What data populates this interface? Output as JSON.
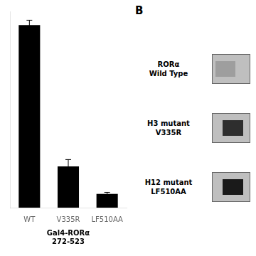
{
  "chart_data": {
    "type": "bar",
    "categories": [
      "WT",
      "V335R",
      "LF510AA"
    ],
    "values": [
      0.93,
      0.21,
      0.07
    ],
    "errors": [
      0.025,
      0.035,
      0.008
    ],
    "color": "#000000",
    "xlabel": "Gal4-RORα\n272-523",
    "ylim": [
      0,
      1.0
    ],
    "grid": false,
    "tick_labels": "x",
    "annotations": [
      "B",
      "RORα\nWild Type",
      "H3 mutant\nV335R",
      "H12 mutant\nLF510AA"
    ]
  }
}
